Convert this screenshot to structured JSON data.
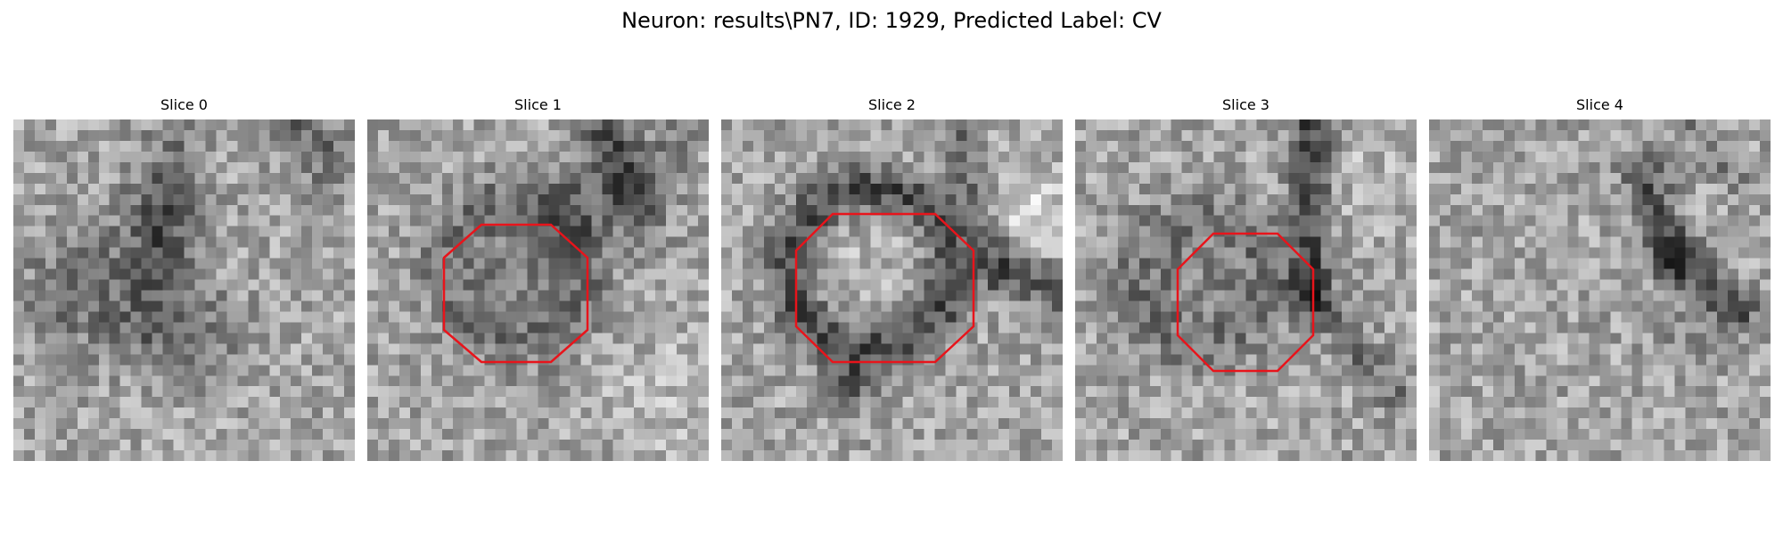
{
  "figure": {
    "title": "Neuron: results\\PN7, ID: 1929, Predicted Label: CV"
  },
  "colors": {
    "background": "#ffffff",
    "contour": "#e8141b"
  },
  "slices": [
    {
      "title": "Slice 0",
      "has_contour": false
    },
    {
      "title": "Slice 1",
      "has_contour": true
    },
    {
      "title": "Slice 2",
      "has_contour": true
    },
    {
      "title": "Slice 3",
      "has_contour": true
    },
    {
      "title": "Slice 4",
      "has_contour": false
    }
  ]
}
